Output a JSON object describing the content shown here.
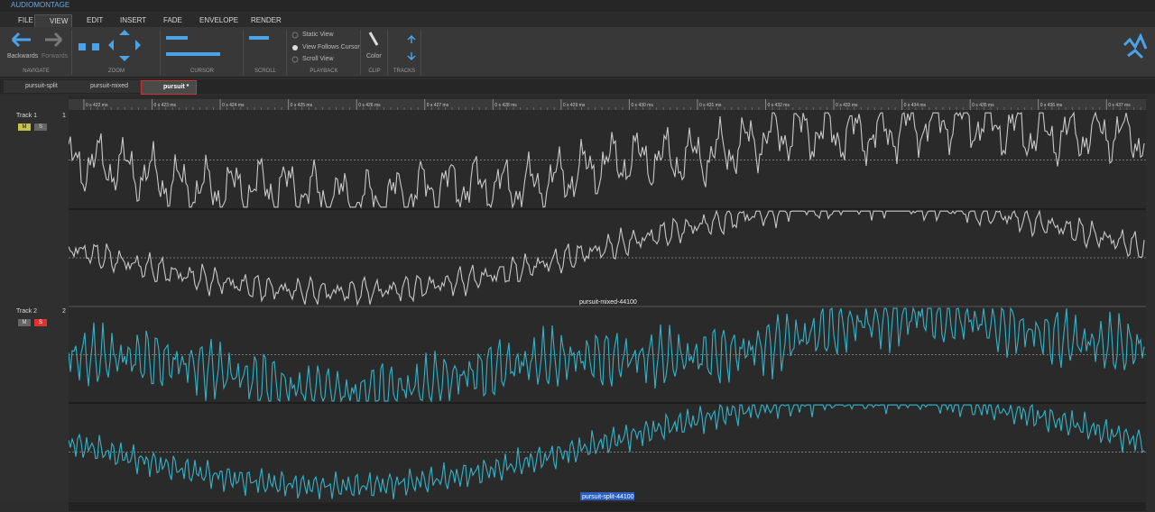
{
  "title_bar": {
    "app_title": "AUDIOMONTAGE"
  },
  "menu": {
    "tabs": [
      "FILE",
      "VIEW",
      "EDIT",
      "INSERT",
      "FADE",
      "ENVELOPE",
      "RENDER"
    ]
  },
  "ribbon": {
    "navigate": {
      "backwards": "Backwards",
      "forwards": "Forwards"
    },
    "playback": {
      "options": [
        "Static View",
        "View Follows Cursor",
        "Scroll View"
      ]
    },
    "clip": {
      "color": "Color"
    },
    "groups": [
      "NAVIGATE",
      "ZOOM",
      "CURSOR",
      "SCROLL",
      "PLAYBACK",
      "CLIP",
      "TRACKS"
    ]
  },
  "document_tabs": [
    "pursuit-split",
    "pursuit-mixed",
    "pursuit *"
  ],
  "ruler": {
    "labels": [
      "0 s 422 ms",
      "0 s 423 ms",
      "0 s 424 ms",
      "0 s 425 ms",
      "0 s 426 ms",
      "0 s 427 ms",
      "0 s 428 ms",
      "0 s 429 ms",
      "0 s 430 ms",
      "0 s 431 ms",
      "0 s 432 ms",
      "0 s 433 ms",
      "0 s 434 ms",
      "0 s 435 ms",
      "0 s 436 ms",
      "0 s 437 ms"
    ]
  },
  "tracks": [
    {
      "name": "Track 1",
      "number": "1",
      "mute": "M",
      "solo": "S",
      "clip": "pursuit-mixed-44100"
    },
    {
      "name": "Track 2",
      "number": "2",
      "mute": "M",
      "solo": "S",
      "clip": "pursuit-split-44100"
    }
  ]
}
